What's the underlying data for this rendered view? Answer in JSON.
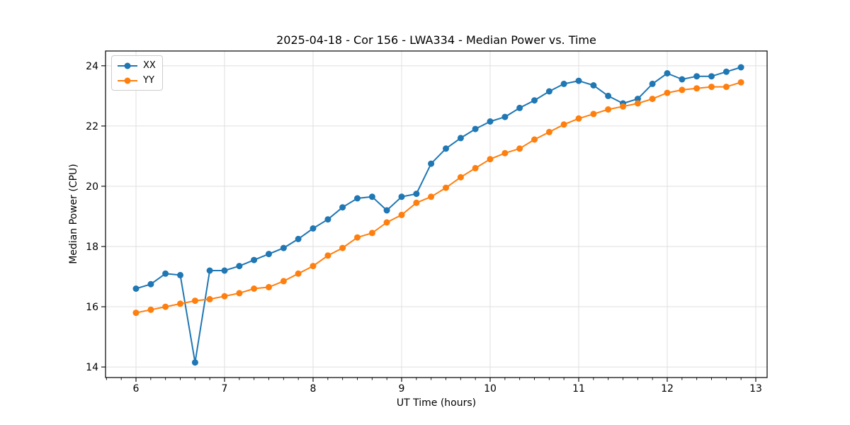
{
  "colors": {
    "series_xx": "#1f77b4",
    "series_yy": "#ff7f0e",
    "grid": "#dfdfdf",
    "spine": "#000000",
    "text": "#000000",
    "legend_border": "#cccccc"
  },
  "chart_data": {
    "type": "line",
    "title": "2025-04-18 - Cor 156 - LWA334 - Median Power vs. Time",
    "xlabel": "UT Time (hours)",
    "ylabel": "Median Power (CPU)",
    "xlim": [
      5.656,
      13.128
    ],
    "ylim": [
      13.65,
      24.49
    ],
    "x_major_ticks": [
      6,
      7,
      8,
      9,
      10,
      11,
      12,
      13
    ],
    "y_major_ticks": [
      14,
      16,
      18,
      20,
      22,
      24
    ],
    "x_minor_step": 0.166667,
    "grid": true,
    "legend_position": "upper-left",
    "marker": "circle",
    "x": [
      6.0,
      6.167,
      6.333,
      6.5,
      6.667,
      6.833,
      7.0,
      7.167,
      7.333,
      7.5,
      7.667,
      7.833,
      8.0,
      8.167,
      8.333,
      8.5,
      8.667,
      8.833,
      9.0,
      9.167,
      9.333,
      9.5,
      9.667,
      9.833,
      10.0,
      10.167,
      10.333,
      10.5,
      10.667,
      10.833,
      11.0,
      11.167,
      11.333,
      11.5,
      11.667,
      11.833,
      12.0,
      12.167,
      12.333,
      12.5,
      12.667,
      12.833
    ],
    "series": [
      {
        "name": "XX",
        "color": "#1f77b4",
        "values": [
          16.6,
          16.75,
          17.1,
          17.05,
          14.15,
          17.2,
          17.2,
          17.35,
          17.55,
          17.75,
          17.95,
          18.25,
          18.6,
          18.9,
          19.3,
          19.6,
          19.65,
          19.2,
          19.65,
          19.75,
          20.75,
          21.25,
          21.6,
          21.9,
          22.15,
          22.3,
          22.6,
          22.85,
          23.15,
          23.4,
          23.5,
          23.35,
          23.0,
          22.75,
          22.9,
          23.4,
          23.75,
          23.55,
          23.65,
          23.65,
          23.8,
          23.95
        ]
      },
      {
        "name": "YY",
        "color": "#ff7f0e",
        "values": [
          15.8,
          15.9,
          16.0,
          16.1,
          16.2,
          16.25,
          16.35,
          16.45,
          16.6,
          16.65,
          16.85,
          17.1,
          17.35,
          17.7,
          17.95,
          18.3,
          18.45,
          18.8,
          19.05,
          19.45,
          19.65,
          19.95,
          20.3,
          20.6,
          20.9,
          21.1,
          21.25,
          21.55,
          21.8,
          22.05,
          22.25,
          22.4,
          22.55,
          22.65,
          22.75,
          22.9,
          23.1,
          23.2,
          23.25,
          23.3,
          23.3,
          23.45
        ]
      }
    ]
  }
}
